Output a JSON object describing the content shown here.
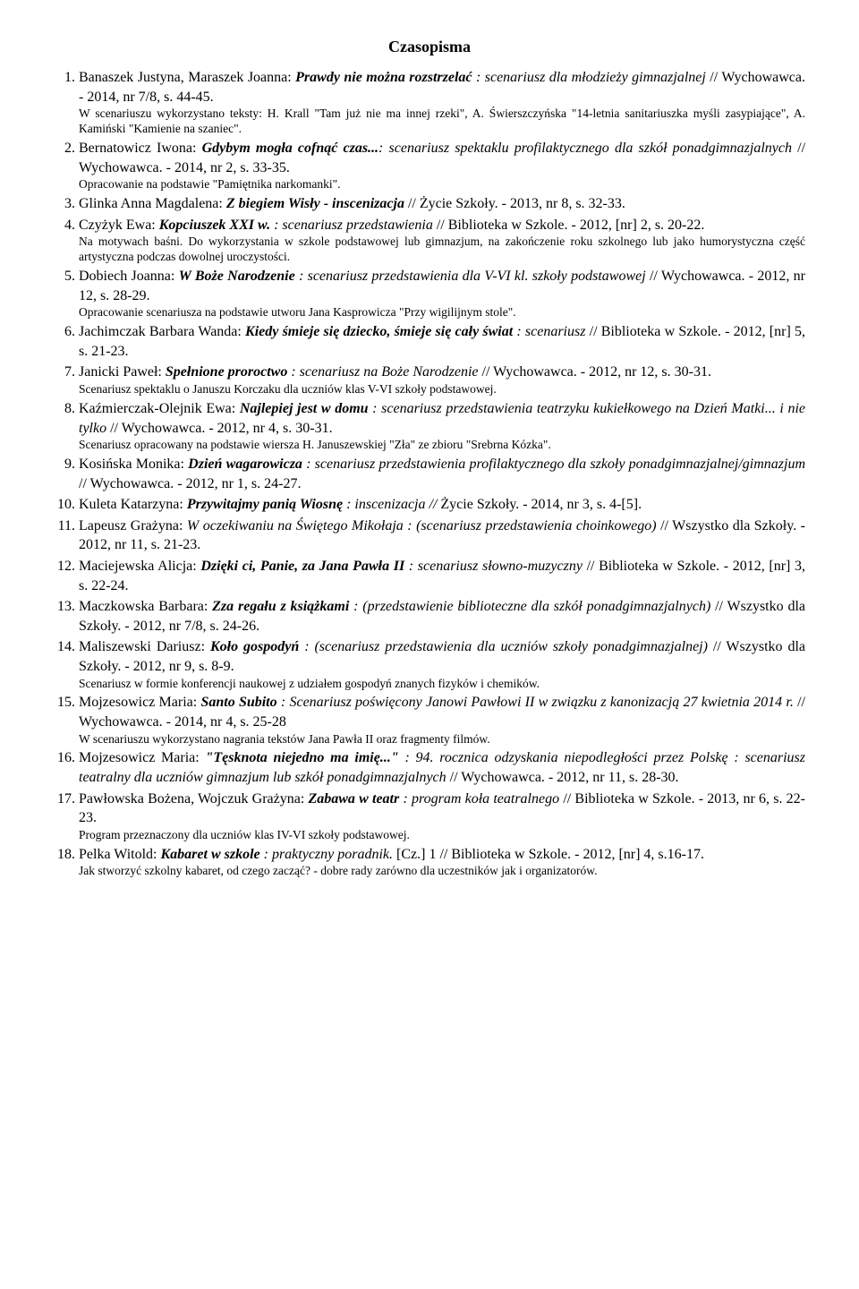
{
  "title": "Czasopisma",
  "items": [
    {
      "n": 1,
      "author": "Banaszek Justyna, Maraszek Joanna: ",
      "title_bi": "Prawdy nie można rozstrzelać",
      "rest_i": " : scenariusz dla młodzieży gimnazjalnej",
      "tail": " // Wychowawca. - 2014, nr 7/8, s. 44-45.",
      "note": "W scenariuszu wykorzystano teksty: H. Krall \"Tam już nie ma innej rzeki\", A. Świerszczyńska \"14-letnia sanitariuszka myśli zasypiające\", A. Kamiński \"Kamienie na szaniec\"."
    },
    {
      "n": 2,
      "author": "Bernatowicz Iwona: ",
      "title_bi": "Gdybym mogła cofnąć czas...",
      "rest_i": ": scenariusz spektaklu profilaktycznego dla szkół ponadgimnazjalnych",
      "tail": " // Wychowawca. - 2014, nr 2, s. 33-35.",
      "note": "Opracowanie na podstawie \"Pamiętnika narkomanki\"."
    },
    {
      "n": 3,
      "author": "Glinka Anna Magdalena: ",
      "title_bi": "Z biegiem Wisły - inscenizacja",
      "rest_i": "",
      "tail": " // Życie Szkoły. - 2013, nr 8, s. 32-33."
    },
    {
      "n": 4,
      "author": "Czyżyk Ewa: ",
      "title_bi": "Kopciuszek XXI w.",
      "rest_i": " : scenariusz przedstawienia",
      "tail": " // Biblioteka w Szkole. - 2012, [nr] 2, s. 20-22.",
      "note": "Na motywach baśni. Do wykorzystania w szkole podstawowej lub gimnazjum, na zakończenie roku szkolnego lub jako humorystyczna część artystyczna podczas dowolnej uroczystości."
    },
    {
      "n": 5,
      "author": "Dobiech Joanna: ",
      "title_bi": "W Boże Narodzenie",
      "rest_i": " : scenariusz przedstawienia dla V-VI kl. szkoły podstawowej",
      "tail": " // Wychowawca. - 2012, nr 12, s. 28-29.",
      "note": "Opracowanie scenariusza na podstawie utworu Jana Kasprowicza \"Przy wigilijnym stole\"."
    },
    {
      "n": 6,
      "author": "Jachimczak Barbara Wanda: ",
      "title_bi": "Kiedy śmieje się dziecko, śmieje się cały świat",
      "rest_i": " : scenariusz",
      "tail": " // Biblioteka w Szkole. - 2012, [nr] 5, s. 21-23."
    },
    {
      "n": 7,
      "author": "Janicki Paweł: ",
      "title_bi": "Spełnione proroctwo",
      "rest_i": " : scenariusz na Boże Narodzenie",
      "tail": " // Wychowawca. - 2012, nr 12, s. 30-31.",
      "note": "Scenariusz spektaklu o Januszu Korczaku dla uczniów klas V-VI szkoły podstawowej."
    },
    {
      "n": 8,
      "author": "Kaźmierczak-Olejnik Ewa: ",
      "title_bi": "Najlepiej jest w domu",
      "rest_i": " : scenariusz przedstawienia teatrzyku kukiełkowego na Dzień Matki... i nie tylko",
      "tail": " // Wychowawca. - 2012, nr 4, s. 30-31.",
      "note": "Scenariusz opracowany na podstawie wiersza H. Januszewskiej \"Zła\" ze zbioru \"Srebrna Kózka\"."
    },
    {
      "n": 9,
      "author": "Kosińska Monika: ",
      "title_bi": "Dzień wagarowicza",
      "rest_i": " : scenariusz przedstawienia profilaktycznego dla szkoły ponadgimnazjalnej/gimnazjum",
      "tail": " // Wychowawca. - 2012, nr 1, s. 24-27."
    },
    {
      "n": 10,
      "author": "Kuleta Katarzyna: ",
      "title_bi": "Przywitajmy panią Wiosnę",
      "rest_i": " : inscenizacja // ",
      "tail": "Życie Szkoły. - 2014, nr 3, s. 4-[5]."
    },
    {
      "n": 11,
      "author": "Lapeusz Grażyna: ",
      "title_bi": "",
      "rest_i": "W oczekiwaniu na Świętego Mikołaja : (scenariusz przedstawienia choinkowego)",
      "tail": " // Wszystko dla Szkoły. - 2012, nr 11, s. 21-23."
    },
    {
      "n": 12,
      "author": "Maciejewska Alicja: ",
      "title_bi": "Dzięki ci, Panie, za Jana Pawła II",
      "rest_i": " : scenariusz słowno-muzyczny",
      "tail": " // Biblioteka w Szkole. - 2012, [nr] 3, s. 22-24."
    },
    {
      "n": 13,
      "author": "Maczkowska Barbara: ",
      "title_bi": "Zza regału z książkami",
      "rest_i": " : (przedstawienie biblioteczne dla szkół ponadgimnazjalnych)",
      "tail": " // Wszystko dla Szkoły. - 2012, nr 7/8, s. 24-26."
    },
    {
      "n": 14,
      "author": "Maliszewski Dariusz: ",
      "title_bi": "Koło gospodyń",
      "rest_i": " : (scenariusz przedstawienia dla uczniów szkoły ponadgimnazjalnej)",
      "tail": " // Wszystko dla Szkoły. - 2012, nr 9, s. 8-9.",
      "note": "Scenariusz w formie konferencji naukowej z udziałem gospodyń znanych fizyków i chemików."
    },
    {
      "n": 15,
      "author": "Mojzesowicz Maria: ",
      "title_bi": "Santo Subito",
      "rest_i": " : Scenariusz poświęcony Janowi Pawłowi II w związku z kanonizacją 27 kwietnia 2014 r.",
      "tail": " // Wychowawca. - 2014, nr 4, s. 25-28",
      "note": "W scenariuszu wykorzystano nagrania tekstów Jana Pawła II oraz fragmenty filmów."
    },
    {
      "n": 16,
      "author": "Mojzesowicz Maria: ",
      "title_bi": "\"Tęsknota niejedno ma imię...\"",
      "rest_i": " : 94. rocznica odzyskania niepodległości przez Polskę : scenariusz teatralny dla uczniów gimnazjum lub szkół ponadgimnazjalnych",
      "tail": " // Wychowawca. - 2012, nr 11, s. 28-30."
    },
    {
      "n": 17,
      "author": "Pawłowska Bożena, Wojczuk Grażyna: ",
      "title_bi": "Zabawa w teatr",
      "rest_i": " : program koła teatralnego",
      "tail": " // Biblioteka w Szkole. - 2013, nr 6, s. 22-23.",
      "note": "Program przeznaczony dla uczniów klas IV-VI szkoły podstawowej."
    },
    {
      "n": 18,
      "author": "Pelka Witold: ",
      "title_bi": "Kabaret w szkole",
      "rest_i": " : praktyczny poradnik. ",
      "tail": "[Cz.] 1 // Biblioteka w Szkole. - 2012, [nr] 4, s.16-17.",
      "note": "Jak stworzyć szkolny kabaret, od czego zacząć? - dobre rady zarówno dla uczestników jak i organizatorów."
    }
  ]
}
